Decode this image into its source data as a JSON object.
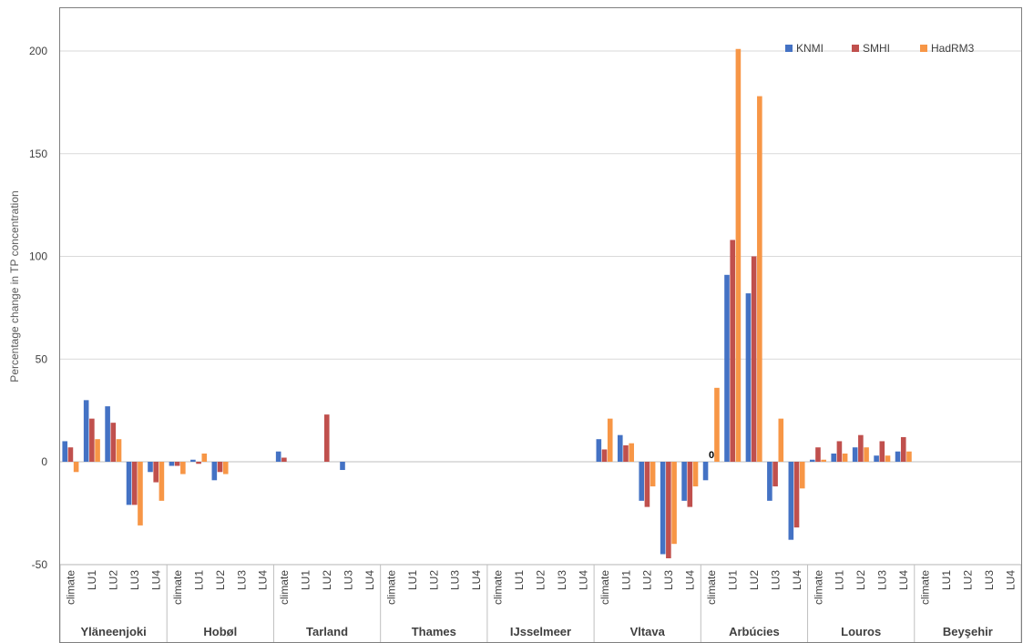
{
  "chart_data": {
    "type": "bar",
    "ylabel": "Percentage change in TP concentration",
    "xlabel": "",
    "ylim": [
      -50,
      225
    ],
    "yticks": [
      -50,
      0,
      50,
      100,
      150,
      200
    ],
    "grid": true,
    "legend_position": "top-right",
    "groups": [
      "Yläneenjoki",
      "Hobøl",
      "Tarland",
      "Thames",
      "IJsselmeer",
      "Vltava",
      "Arbúcies",
      "Louros",
      "Beyşehir"
    ],
    "scenarios": [
      "climate",
      "LU1",
      "LU2",
      "LU3",
      "LU4"
    ],
    "series": [
      {
        "name": "KNMI",
        "color": "#4472C4",
        "values": [
          [
            10,
            30,
            27,
            -21,
            -5
          ],
          [
            -2,
            1,
            -9,
            0,
            0
          ],
          [
            5,
            0,
            0,
            -4,
            0
          ],
          [
            0,
            0,
            0,
            0,
            0
          ],
          [
            0,
            0,
            0,
            0,
            0
          ],
          [
            11,
            13,
            -19,
            -45,
            -19
          ],
          [
            -9,
            91,
            82,
            -19,
            -38
          ],
          [
            1,
            4,
            7,
            3,
            5
          ],
          [
            0,
            0,
            0,
            0,
            0
          ]
        ]
      },
      {
        "name": "SMHI",
        "color": "#C0504D",
        "values": [
          [
            7,
            21,
            19,
            -21,
            -10
          ],
          [
            -2,
            -1,
            -5,
            0,
            0
          ],
          [
            2,
            0,
            23,
            0,
            0
          ],
          [
            0,
            0,
            0,
            0,
            0
          ],
          [
            0,
            0,
            0,
            0,
            0
          ],
          [
            6,
            8,
            -22,
            -47,
            -22
          ],
          [
            0,
            108,
            100,
            -12,
            -32
          ],
          [
            7,
            10,
            13,
            10,
            12
          ],
          [
            0,
            0,
            0,
            0,
            0
          ]
        ]
      },
      {
        "name": "HadRM3",
        "color": "#F79646",
        "values": [
          [
            -5,
            11,
            11,
            -31,
            -19
          ],
          [
            -6,
            4,
            -6,
            0,
            0
          ],
          [
            0,
            0,
            0,
            0,
            0
          ],
          [
            0,
            0,
            0,
            0,
            0
          ],
          [
            0,
            0,
            0,
            0,
            0
          ],
          [
            21,
            9,
            -12,
            -40,
            -12
          ],
          [
            36,
            201,
            178,
            21,
            -13
          ],
          [
            1,
            4,
            7,
            3,
            5
          ],
          [
            0,
            0,
            0,
            0,
            0
          ]
        ]
      }
    ],
    "annotations": [
      {
        "text": "0",
        "group": "Arbúcies",
        "scenario": "climate",
        "series": "SMHI",
        "value": 0
      }
    ]
  }
}
